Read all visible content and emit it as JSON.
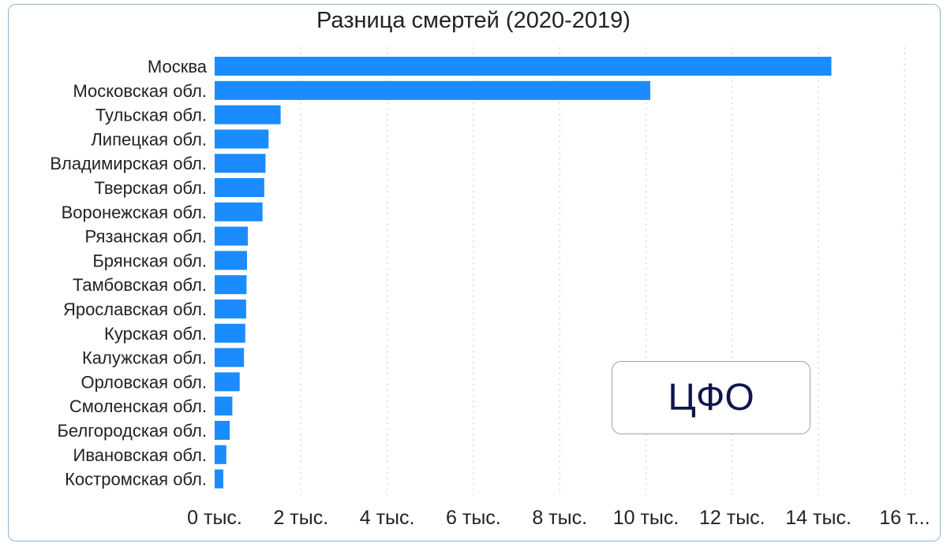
{
  "chart_data": {
    "type": "bar",
    "orientation": "horizontal",
    "title": "Разница смертей (2020-2019)",
    "categories": [
      "Москва",
      "Московская обл.",
      "Тульская обл.",
      "Липецкая обл.",
      "Владимирская обл.",
      "Тверская обл.",
      "Воронежская обл.",
      "Рязанская обл.",
      "Брянская обл.",
      "Тамбовская обл.",
      "Ярославская обл.",
      "Курская обл.",
      "Калужская обл.",
      "Орловская обл.",
      "Смоленская обл.",
      "Белгородская обл.",
      "Ивановская обл.",
      "Костромская обл."
    ],
    "values": [
      14300,
      10100,
      1530,
      1250,
      1180,
      1150,
      1110,
      770,
      750,
      740,
      730,
      710,
      680,
      580,
      410,
      350,
      270,
      200
    ],
    "xlim": [
      0,
      16000
    ],
    "xticks": [
      0,
      2000,
      4000,
      6000,
      8000,
      10000,
      12000,
      14000,
      16000
    ],
    "xtick_labels": [
      "0 тыс.",
      "2 тыс.",
      "4 тыс.",
      "6 тыс.",
      "8 тыс.",
      "10 тыс.",
      "12 тыс.",
      "14 тыс.",
      "16 т..."
    ],
    "grid": "vertical-dotted",
    "bar_color": "#1a8cff"
  },
  "badge": {
    "text": "ЦФО"
  }
}
